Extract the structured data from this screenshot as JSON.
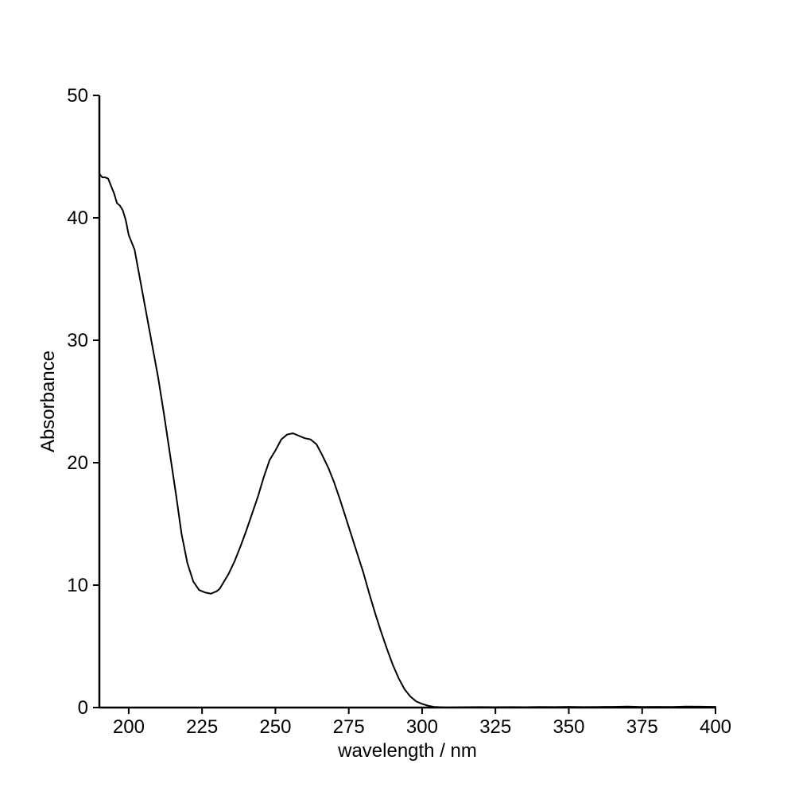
{
  "chart_data": {
    "type": "line",
    "title": "",
    "xlabel": "wavelength / nm",
    "ylabel": "Absorbance",
    "xlim": [
      190,
      400
    ],
    "ylim": [
      0,
      50
    ],
    "x_ticks": [
      200,
      225,
      250,
      275,
      300,
      325,
      350,
      375,
      400
    ],
    "y_ticks": [
      0,
      10,
      20,
      30,
      40,
      50
    ],
    "grid": false,
    "legend": "none",
    "series": [
      {
        "color": "#000000",
        "x": [
          190,
          191,
          192,
          193,
          194,
          195,
          196,
          197,
          198,
          199,
          200,
          202,
          204,
          206,
          208,
          210,
          212,
          214,
          216,
          218,
          220,
          222,
          224,
          226,
          227,
          228,
          229,
          230,
          231,
          232,
          234,
          236,
          238,
          240,
          242,
          244,
          246,
          248,
          250,
          252,
          254,
          256,
          257,
          258,
          259,
          260,
          262,
          264,
          266,
          268,
          270,
          272,
          274,
          276,
          278,
          280,
          282,
          284,
          286,
          288,
          290,
          292,
          294,
          296,
          298,
          300,
          302,
          304,
          306,
          308,
          310,
          315,
          320,
          325,
          330,
          335,
          340,
          345,
          350,
          355,
          360,
          365,
          370,
          375,
          380,
          385,
          390,
          395,
          400
        ],
        "y": [
          43.6,
          43.3,
          43.3,
          43.2,
          42.6,
          42.0,
          41.2,
          41.0,
          40.6,
          39.8,
          38.6,
          37.4,
          34.8,
          32.2,
          29.6,
          27.0,
          24.0,
          20.8,
          17.6,
          14.2,
          11.8,
          10.3,
          9.6,
          9.4,
          9.35,
          9.3,
          9.4,
          9.5,
          9.7,
          10.1,
          10.9,
          11.9,
          13.1,
          14.4,
          15.8,
          17.2,
          18.8,
          20.2,
          21.0,
          21.9,
          22.3,
          22.4,
          22.3,
          22.2,
          22.1,
          22.0,
          21.9,
          21.5,
          20.6,
          19.6,
          18.4,
          17.0,
          15.5,
          14.0,
          12.5,
          11.0,
          9.3,
          7.7,
          6.2,
          4.8,
          3.5,
          2.4,
          1.5,
          0.9,
          0.5,
          0.3,
          0.15,
          0.06,
          0.03,
          0.02,
          0.02,
          0.03,
          0.04,
          0.03,
          0.04,
          0.03,
          0.05,
          0.04,
          0.06,
          0.04,
          0.05,
          0.06,
          0.08,
          0.05,
          0.06,
          0.05,
          0.08,
          0.07,
          0.06
        ]
      }
    ]
  }
}
